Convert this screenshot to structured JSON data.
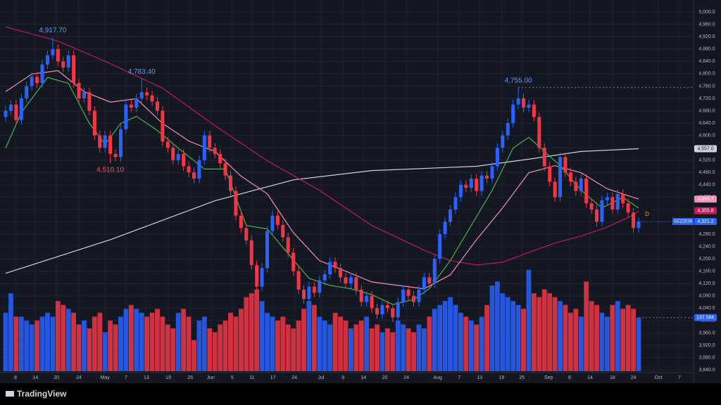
{
  "chart_data": {
    "type": "candlestick",
    "symbol": "GCZ2026",
    "brand": "TradingView",
    "interval_marker": "D",
    "xlim": [
      -1.08,
      131.5
    ],
    "ylim": [
      3806,
      5039
    ],
    "volume_ylim": [
      0,
      952
    ],
    "up_color": "#2962ff",
    "down_color": "#f23645",
    "xticks": [
      {
        "value": 1.9,
        "label": "8"
      },
      {
        "value": 5.7,
        "label": "14"
      },
      {
        "value": 9.7,
        "label": "20"
      },
      {
        "value": 14,
        "label": "24"
      },
      {
        "value": 19,
        "label": "May"
      },
      {
        "value": 23,
        "label": "7"
      },
      {
        "value": 26.9,
        "label": "13"
      },
      {
        "value": 31.1,
        "label": "19"
      },
      {
        "value": 35.3,
        "label": "26"
      },
      {
        "value": 39.2,
        "label": "Jun"
      },
      {
        "value": 43.3,
        "label": "5"
      },
      {
        "value": 47.1,
        "label": "11"
      },
      {
        "value": 51.1,
        "label": "17"
      },
      {
        "value": 55.2,
        "label": "24"
      },
      {
        "value": 60.3,
        "label": "Jul"
      },
      {
        "value": 64.5,
        "label": "8"
      },
      {
        "value": 68.4,
        "label": "14"
      },
      {
        "value": 72.5,
        "label": "20"
      },
      {
        "value": 76.6,
        "label": "24"
      },
      {
        "value": 82.6,
        "label": "Aug"
      },
      {
        "value": 86.7,
        "label": "7"
      },
      {
        "value": 90.6,
        "label": "13"
      },
      {
        "value": 94.8,
        "label": "19"
      },
      {
        "value": 98.7,
        "label": "25"
      },
      {
        "value": 103.8,
        "label": "Sep"
      },
      {
        "value": 107.8,
        "label": "8"
      },
      {
        "value": 111.7,
        "label": "14"
      },
      {
        "value": 116,
        "label": "18"
      },
      {
        "value": 120,
        "label": "24"
      },
      {
        "value": 124.8,
        "label": "Oct"
      },
      {
        "value": 128.8,
        "label": "7"
      }
    ],
    "yticks": [
      {
        "value": 3840,
        "label": "3,840.0"
      },
      {
        "value": 3880,
        "label": "3,880.0"
      },
      {
        "value": 3920,
        "label": "3,920.0"
      },
      {
        "value": 3960,
        "label": "3,960.0"
      },
      {
        "value": 4000,
        "label": "4,000.0"
      },
      {
        "value": 4040,
        "label": "4,040.0"
      },
      {
        "value": 4080,
        "label": "4,080.0"
      },
      {
        "value": 4120,
        "label": "4,120.0"
      },
      {
        "value": 4160,
        "label": "4,160.0"
      },
      {
        "value": 4200,
        "label": "4,200.0"
      },
      {
        "value": 4240,
        "label": "4,240.0"
      },
      {
        "value": 4280,
        "label": "4,280.0"
      },
      {
        "value": 4320,
        "label": "4,320.0"
      },
      {
        "value": 4360,
        "label": "4,360.0"
      },
      {
        "value": 4400,
        "label": "4,400.0"
      },
      {
        "value": 4440,
        "label": "4,440.0"
      },
      {
        "value": 4480,
        "label": "4,480.0"
      },
      {
        "value": 4520,
        "label": "4,520.0"
      },
      {
        "value": 4560,
        "label": "4,560.0"
      },
      {
        "value": 4600,
        "label": "4,600.0"
      },
      {
        "value": 4640,
        "label": "4,640.0"
      },
      {
        "value": 4680,
        "label": "4,680.0"
      },
      {
        "value": 4720,
        "label": "4,720.0"
      },
      {
        "value": 4760,
        "label": "4,760.0"
      },
      {
        "value": 4800,
        "label": "4,800.0"
      },
      {
        "value": 4840,
        "label": "4,840.0"
      },
      {
        "value": 4880,
        "label": "4,880.0"
      },
      {
        "value": 4920,
        "label": "4,920.0"
      },
      {
        "value": 4960,
        "label": "4,960.0"
      },
      {
        "value": 5000,
        "label": "5,000.0"
      }
    ],
    "open": [
      4660,
      4680,
      4700,
      4650,
      4720,
      4760,
      4790,
      4770,
      4830,
      4860,
      4880,
      4840,
      4820,
      4860,
      4770,
      4720,
      4740,
      4680,
      4600,
      4560,
      4600,
      4540,
      4530,
      4620,
      4700,
      4690,
      4720,
      4740,
      4730,
      4710,
      4680,
      4580,
      4560,
      4520,
      4540,
      4500,
      4480,
      4460,
      4520,
      4600,
      4560,
      4540,
      4510,
      4470,
      4420,
      4340,
      4300,
      4260,
      4180,
      4110,
      4170,
      4290,
      4340,
      4310,
      4270,
      4220,
      4160,
      4100,
      4070,
      4110,
      4090,
      4130,
      4150,
      4190,
      4170,
      4140,
      4120,
      4140,
      4100,
      4060,
      4080,
      4040,
      4020,
      4050,
      4040,
      4010,
      4060,
      4100,
      4080,
      4060,
      4100,
      4140,
      4120,
      4200,
      4280,
      4320,
      4360,
      4400,
      4440,
      4430,
      4460,
      4420,
      4470,
      4460,
      4500,
      4560,
      4600,
      4640,
      4700,
      4720,
      4690,
      4700,
      4660,
      4560,
      4500,
      4450,
      4400,
      4530,
      4480,
      4450,
      4420,
      4460,
      4380,
      4360,
      4320,
      4390,
      4400,
      4360,
      4410,
      4380,
      4350,
      4300
    ],
    "high": [
      4695,
      4715,
      4715,
      4735,
      4775,
      4805,
      4805,
      4845,
      4875,
      4917.7,
      4895,
      4855,
      4875,
      4875,
      4785,
      4755,
      4755,
      4695,
      4615,
      4615,
      4615,
      4555,
      4635,
      4715,
      4715,
      4735,
      4783.4,
      4755,
      4745,
      4725,
      4695,
      4595,
      4575,
      4555,
      4555,
      4515,
      4495,
      4535,
      4615,
      4615,
      4575,
      4555,
      4525,
      4485,
      4435,
      4355,
      4315,
      4275,
      4195,
      4185,
      4305,
      4355,
      4355,
      4325,
      4285,
      4235,
      4175,
      4115,
      4125,
      4125,
      4145,
      4165,
      4205,
      4205,
      4185,
      4155,
      4155,
      4155,
      4115,
      4095,
      4095,
      4055,
      4065,
      4065,
      4055,
      4075,
      4115,
      4115,
      4095,
      4115,
      4155,
      4155,
      4215,
      4295,
      4335,
      4375,
      4415,
      4455,
      4455,
      4475,
      4475,
      4485,
      4485,
      4515,
      4575,
      4615,
      4655,
      4715,
      4755,
      4735,
      4715,
      4715,
      4675,
      4575,
      4515,
      4465,
      4545,
      4545,
      4495,
      4465,
      4475,
      4475,
      4395,
      4375,
      4405,
      4415,
      4415,
      4425,
      4425,
      4395,
      4365,
      4335
    ],
    "low": [
      4645,
      4665,
      4635,
      4635,
      4705,
      4745,
      4755,
      4755,
      4815,
      4845,
      4825,
      4805,
      4805,
      4755,
      4705,
      4705,
      4665,
      4585,
      4545,
      4545,
      4510.1,
      4515,
      4515,
      4605,
      4675,
      4675,
      4705,
      4715,
      4695,
      4665,
      4565,
      4545,
      4505,
      4505,
      4485,
      4465,
      4445,
      4445,
      4505,
      4545,
      4525,
      4495,
      4455,
      4405,
      4325,
      4285,
      4245,
      4165,
      4095,
      4095,
      4155,
      4275,
      4295,
      4255,
      4205,
      4145,
      4085,
      4055,
      4055,
      4075,
      4075,
      4115,
      4135,
      4155,
      4125,
      4105,
      4105,
      4085,
      4045,
      4045,
      4025,
      4005,
      4005,
      4025,
      3995,
      3995,
      4045,
      4065,
      4045,
      4045,
      4085,
      4105,
      4105,
      4185,
      4265,
      4305,
      4345,
      4385,
      4415,
      4415,
      4405,
      4405,
      4445,
      4445,
      4485,
      4545,
      4585,
      4625,
      4685,
      4675,
      4675,
      4645,
      4545,
      4485,
      4435,
      4385,
      4385,
      4465,
      4435,
      4405,
      4405,
      4365,
      4345,
      4305,
      4305,
      4375,
      4345,
      4345,
      4365,
      4335,
      4285,
      4285
    ],
    "close": [
      4680,
      4700,
      4650,
      4720,
      4760,
      4790,
      4770,
      4830,
      4860,
      4880,
      4840,
      4820,
      4860,
      4770,
      4720,
      4740,
      4680,
      4600,
      4560,
      4600,
      4540,
      4530,
      4620,
      4700,
      4690,
      4720,
      4740,
      4730,
      4710,
      4680,
      4580,
      4560,
      4520,
      4540,
      4500,
      4480,
      4460,
      4520,
      4600,
      4560,
      4540,
      4510,
      4470,
      4420,
      4340,
      4300,
      4260,
      4180,
      4110,
      4170,
      4290,
      4340,
      4310,
      4270,
      4220,
      4160,
      4100,
      4070,
      4110,
      4090,
      4130,
      4150,
      4190,
      4170,
      4140,
      4120,
      4140,
      4100,
      4060,
      4080,
      4040,
      4020,
      4050,
      4040,
      4010,
      4060,
      4100,
      4080,
      4060,
      4100,
      4140,
      4120,
      4200,
      4280,
      4320,
      4360,
      4400,
      4440,
      4430,
      4460,
      4420,
      4470,
      4460,
      4500,
      4560,
      4600,
      4640,
      4700,
      4720,
      4690,
      4700,
      4660,
      4560,
      4500,
      4450,
      4400,
      4530,
      4480,
      4450,
      4420,
      4460,
      4380,
      4360,
      4320,
      4390,
      4400,
      4360,
      4410,
      4380,
      4350,
      4300,
      4321.2
    ],
    "last_price_label": "4,321.2",
    "volume": [
      150,
      200,
      140,
      140,
      130,
      120,
      130,
      140,
      150,
      140,
      180,
      170,
      160,
      150,
      120,
      130,
      110,
      140,
      150,
      100,
      130,
      120,
      140,
      160,
      170,
      160,
      150,
      140,
      150,
      160,
      140,
      120,
      110,
      150,
      160,
      140,
      80,
      130,
      140,
      110,
      100,
      120,
      130,
      150,
      140,
      160,
      190,
      200,
      210,
      180,
      150,
      140,
      130,
      140,
      120,
      110,
      130,
      160,
      180,
      170,
      140,
      130,
      120,
      150,
      140,
      130,
      110,
      120,
      130,
      140,
      110,
      120,
      100,
      110,
      100,
      130,
      120,
      110,
      100,
      120,
      110,
      140,
      160,
      170,
      180,
      190,
      170,
      150,
      140,
      130,
      120,
      140,
      170,
      220,
      230,
      200,
      190,
      180,
      170,
      160,
      260,
      200,
      190,
      210,
      200,
      190,
      180,
      170,
      150,
      160,
      140,
      230,
      180,
      170,
      150,
      140,
      170,
      180,
      160,
      170,
      160,
      137.56
    ],
    "last_volume_label": "137.56K",
    "series": [
      {
        "color": "#d1d4dc",
        "x": [
          0,
          20,
          40,
          55,
          70,
          90,
          100,
          110,
          121
        ],
        "values": [
          4153,
          4262,
          4388,
          4456,
          4486,
          4500,
          4523,
          4548,
          4557
        ],
        "last_label": "4,557.0"
      },
      {
        "color": "#c2185b",
        "x": [
          0,
          10,
          20,
          30,
          40,
          50,
          60,
          70,
          80,
          85,
          90,
          95,
          100,
          105,
          110,
          115,
          120,
          121
        ],
        "values": [
          4952,
          4906,
          4833,
          4753,
          4632,
          4518,
          4422,
          4308,
          4228,
          4194,
          4180,
          4189,
          4221,
          4251,
          4274,
          4303,
          4342,
          4355.8
        ],
        "last_label": "4,355.8"
      },
      {
        "color": "#f48fb1",
        "x": [
          0,
          5,
          10,
          15,
          20,
          25,
          30,
          35,
          40,
          45,
          50,
          55,
          60,
          65,
          70,
          75,
          80,
          85,
          90,
          95,
          100,
          105,
          110,
          115,
          121
        ],
        "values": [
          4742,
          4799,
          4810,
          4742,
          4708,
          4719,
          4639,
          4582,
          4548,
          4468,
          4411,
          4285,
          4194,
          4160,
          4125,
          4114,
          4103,
          4148,
          4262,
          4365,
          4479,
          4502,
          4479,
          4427,
          4393.7
        ],
        "last_label": "4,393.7"
      },
      {
        "color": "#4caf50",
        "x": [
          0,
          3,
          8,
          12,
          16,
          19,
          22,
          25,
          29,
          33,
          38,
          42,
          46,
          50,
          54,
          58,
          62,
          66,
          70,
          74,
          78,
          81,
          85,
          89,
          93,
          97,
          100,
          103,
          106,
          110,
          114,
          118,
          121
        ],
        "values": [
          4559,
          4674,
          4788,
          4769,
          4639,
          4571,
          4639,
          4662,
          4616,
          4559,
          4491,
          4491,
          4308,
          4297,
          4217,
          4137,
          4114,
          4103,
          4084,
          4052,
          4068,
          4103,
          4194,
          4308,
          4422,
          4559,
          4594,
          4548,
          4502,
          4422,
          4365,
          4399,
          4365
        ]
      }
    ],
    "annotations": [
      {
        "label": "4,917.70",
        "x": 9,
        "value": 4917.7,
        "color": "#5b9cf6"
      },
      {
        "label": "4,783.40",
        "x": 26,
        "value": 4783.4,
        "color": "#5b9cf6"
      },
      {
        "label": "4,510.10",
        "x": 20,
        "value": 4510.1,
        "color": "#f7525f"
      },
      {
        "label": "4,755.00",
        "x": 98,
        "value": 4755,
        "color": "#5b9cf6"
      }
    ]
  }
}
